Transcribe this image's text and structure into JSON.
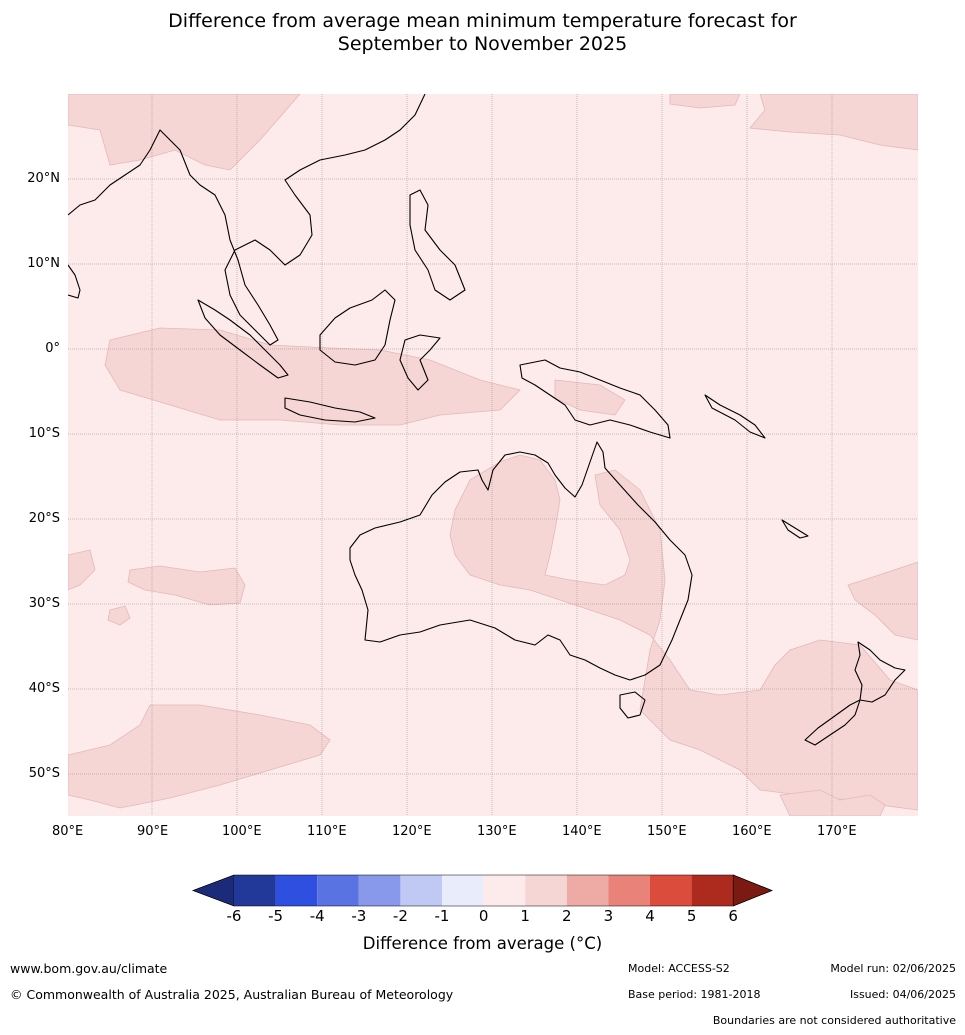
{
  "title": {
    "line1": "Difference from average mean minimum temperature forecast for",
    "line2": "September to November 2025"
  },
  "map": {
    "lon_labels": [
      "80°E",
      "90°E",
      "100°E",
      "110°E",
      "120°E",
      "130°E",
      "140°E",
      "150°E",
      "160°E",
      "170°E"
    ],
    "lat_labels": [
      "20°N",
      "10°N",
      "0°",
      "10°S",
      "20°S",
      "30°S",
      "40°S",
      "50°S"
    ],
    "lon_range": [
      80,
      180
    ],
    "lat_range": [
      -55,
      30
    ],
    "background_class": "0 to 1",
    "anomaly_class": "1 to 2"
  },
  "colorbar": {
    "ticks": [
      "-6",
      "-5",
      "-4",
      "-3",
      "-2",
      "-1",
      "0",
      "1",
      "2",
      "3",
      "4",
      "5",
      "6"
    ],
    "colors": [
      "#233999",
      "#2f4fe0",
      "#5a73e3",
      "#8898eb",
      "#c0c8f4",
      "#e9ecfb",
      "#fcebea",
      "#f6d5d5",
      "#eeaba6",
      "#e98279",
      "#dc4c3c",
      "#ac2a1e"
    ],
    "under_color": "#1c2a7a",
    "over_color": "#7a1a12",
    "label": "Difference from average (°C)"
  },
  "footer": {
    "website": "www.bom.gov.au/climate",
    "copyright": "© Commonwealth of Australia 2025, Australian Bureau of Meteorology",
    "model": "Model: ACCESS-S2",
    "base_period": "Base period: 1981-2018",
    "model_run": "Model run: 02/06/2025",
    "issued": "Issued: 04/06/2025",
    "disclaimer": "Boundaries are not considered authoritative"
  }
}
